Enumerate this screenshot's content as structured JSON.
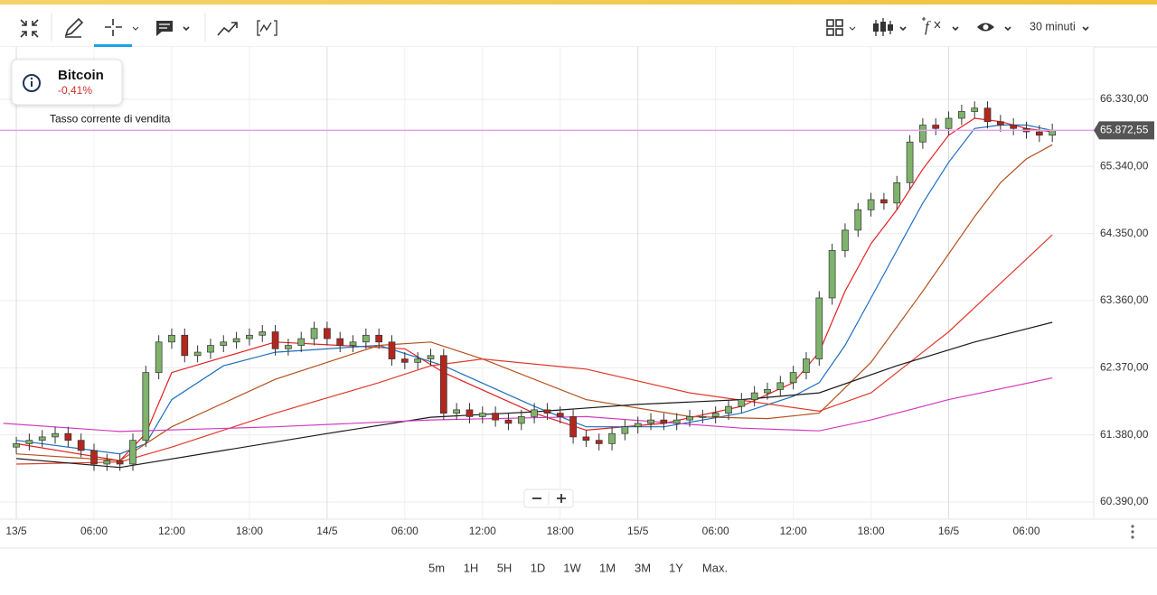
{
  "toolbar": {
    "interval": "30 minuti"
  },
  "instrument": {
    "name": "Bitcoin",
    "change": "-0,41%"
  },
  "ranges": [
    "5m",
    "1H",
    "5H",
    "1D",
    "1W",
    "1M",
    "3M",
    "1Y",
    "Max."
  ],
  "chart_data": {
    "type": "candlestick",
    "x": [
      0,
      1,
      2,
      3,
      4,
      5,
      6,
      7,
      8,
      9,
      10,
      11,
      12,
      13,
      14,
      15,
      16,
      17,
      18,
      19,
      20,
      21,
      22,
      23,
      24,
      25,
      26,
      27,
      28,
      29,
      30,
      31,
      32,
      33,
      34,
      35,
      36,
      37,
      38,
      39,
      40,
      41,
      42,
      43,
      44,
      45,
      46,
      47,
      48,
      49,
      50,
      51,
      52,
      53,
      54,
      55,
      56,
      57,
      58,
      59,
      60,
      61,
      62,
      63,
      64,
      65,
      66,
      67,
      68,
      69,
      70,
      71,
      72,
      73,
      74,
      75,
      76,
      77,
      78,
      79,
      80
    ],
    "open": [
      61200,
      61250,
      61300,
      61350,
      61400,
      61300,
      61150,
      60950,
      61000,
      60950,
      61300,
      62300,
      62750,
      62850,
      62550,
      62600,
      62700,
      62750,
      62800,
      62850,
      62900,
      62650,
      62700,
      62800,
      62950,
      62800,
      62700,
      62750,
      62850,
      62750,
      62500,
      62450,
      62500,
      62550,
      61700,
      61750,
      61650,
      61700,
      61600,
      61550,
      61650,
      61750,
      61700,
      61650,
      61350,
      61300,
      61250,
      61400,
      61500,
      61550,
      61600,
      61550,
      61600,
      61650,
      61650,
      61700,
      61800,
      61900,
      62000,
      62050,
      62150,
      62300,
      62500,
      63400,
      64100,
      64400,
      64700,
      64850,
      64800,
      65100,
      65700,
      65950,
      65900,
      66050,
      66150,
      66200,
      66000,
      65950,
      65900,
      65850,
      65800
    ],
    "high": [
      61350,
      61400,
      61450,
      61500,
      61500,
      61400,
      61250,
      61100,
      61100,
      61400,
      62400,
      62850,
      62950,
      62950,
      62700,
      62800,
      62850,
      62900,
      62950,
      63000,
      63000,
      62800,
      62900,
      63050,
      63050,
      62900,
      62850,
      62950,
      62950,
      62850,
      62600,
      62600,
      62650,
      62650,
      61850,
      61850,
      61800,
      61800,
      61700,
      61750,
      61850,
      61850,
      61800,
      61750,
      61450,
      61400,
      61500,
      61600,
      61650,
      61700,
      61700,
      61700,
      61750,
      61750,
      61800,
      61900,
      62000,
      62100,
      62150,
      62250,
      62400,
      62600,
      63500,
      64200,
      64500,
      64800,
      64950,
      64950,
      65200,
      65800,
      66050,
      66050,
      66150,
      66250,
      66300,
      66300,
      66100,
      66050,
      66000,
      65950,
      65970
    ],
    "low": [
      61100,
      61150,
      61200,
      61250,
      61200,
      61050,
      60850,
      60850,
      60850,
      60850,
      61200,
      62200,
      62650,
      62450,
      62450,
      62500,
      62600,
      62650,
      62700,
      62750,
      62550,
      62550,
      62600,
      62700,
      62700,
      62600,
      62600,
      62650,
      62650,
      62400,
      62350,
      62350,
      62400,
      61600,
      61600,
      61550,
      61550,
      61500,
      61450,
      61450,
      61550,
      61600,
      61550,
      61250,
      61200,
      61150,
      61150,
      61300,
      61400,
      61450,
      61450,
      61450,
      61500,
      61550,
      61550,
      61600,
      61700,
      61800,
      61900,
      61950,
      62050,
      62200,
      62400,
      63300,
      64000,
      64300,
      64600,
      64700,
      64700,
      65000,
      65600,
      65800,
      65800,
      65950,
      66050,
      65900,
      65850,
      65800,
      65750,
      65700,
      65700
    ],
    "close": [
      61250,
      61300,
      61350,
      61400,
      61300,
      61150,
      60950,
      61000,
      60950,
      61300,
      62300,
      62750,
      62850,
      62550,
      62600,
      62700,
      62750,
      62800,
      62850,
      62900,
      62650,
      62700,
      62800,
      62950,
      62800,
      62700,
      62750,
      62850,
      62750,
      62500,
      62450,
      62500,
      62550,
      61700,
      61750,
      61650,
      61700,
      61600,
      61550,
      61650,
      61750,
      61700,
      61650,
      61350,
      61300,
      61250,
      61400,
      61500,
      61550,
      61600,
      61550,
      61600,
      61650,
      61650,
      61700,
      61800,
      61900,
      62000,
      62050,
      62150,
      62300,
      62500,
      63400,
      64100,
      64400,
      64700,
      64850,
      64800,
      65100,
      65700,
      65950,
      65900,
      66050,
      66150,
      66200,
      66000,
      65950,
      65900,
      65850,
      65800,
      65870
    ],
    "up_color": "#7fb36b",
    "down_color": "#b3261e",
    "lines": [
      {
        "color": "#e21f1f",
        "x": [
          0,
          8,
          10,
          12,
          20,
          30,
          33,
          40,
          44,
          50,
          56,
          60,
          62,
          64,
          66,
          68,
          70,
          72,
          74,
          76,
          78,
          80
        ],
        "values": [
          61250,
          61000,
          61400,
          62300,
          62750,
          62650,
          62300,
          61700,
          61450,
          61550,
          61800,
          62150,
          62600,
          63500,
          64200,
          64700,
          65300,
          65800,
          66050,
          66000,
          65900,
          65850
        ]
      },
      {
        "color": "#1e6fbe",
        "x": [
          0,
          8,
          10,
          12,
          16,
          20,
          28,
          33,
          40,
          44,
          50,
          56,
          60,
          62,
          64,
          66,
          68,
          70,
          72,
          74,
          76,
          78,
          80
        ],
        "values": [
          61300,
          61100,
          61250,
          61900,
          62400,
          62600,
          62700,
          62400,
          61800,
          61500,
          61500,
          61700,
          61950,
          62150,
          62700,
          63400,
          64100,
          64800,
          65400,
          65900,
          65950,
          65950,
          65870
        ]
      },
      {
        "color": "#b4521e",
        "x": [
          0,
          8,
          12,
          20,
          28,
          32,
          36,
          44,
          52,
          58,
          62,
          66,
          70,
          74,
          76,
          78,
          80
        ],
        "values": [
          61100,
          61000,
          61500,
          62200,
          62700,
          62750,
          62500,
          61900,
          61650,
          61620,
          61700,
          62450,
          63500,
          64600,
          65100,
          65450,
          65660
        ]
      },
      {
        "color": "#e03a2a",
        "x": [
          0,
          8,
          12,
          20,
          28,
          32,
          36,
          44,
          52,
          62,
          66,
          72,
          80
        ],
        "values": [
          60950,
          60980,
          61200,
          61700,
          62150,
          62400,
          62500,
          62350,
          62000,
          61730,
          62000,
          62900,
          64330
        ]
      },
      {
        "color": "#1a1a1a",
        "x": [
          0,
          8,
          16,
          24,
          32,
          40,
          48,
          56,
          62,
          68,
          74,
          80
        ],
        "values": [
          61030,
          60900,
          61150,
          61400,
          61640,
          61720,
          61830,
          61900,
          62000,
          62400,
          62750,
          63040
        ]
      },
      {
        "color": "#d23bbf",
        "x": [
          -1,
          8,
          20,
          32,
          44,
          56,
          62,
          66,
          72,
          80
        ],
        "values": [
          61550,
          61430,
          61500,
          61600,
          61650,
          61480,
          61440,
          61600,
          61900,
          62220
        ]
      }
    ],
    "price_line": {
      "value": 65872.55,
      "label": "65.872,55",
      "text": "Tasso corrente di vendita",
      "color": "#e3a0e8"
    },
    "xlim": [
      -1.26,
      83.2
    ],
    "ylim": [
      60137,
      67102
    ],
    "xticks": [
      {
        "value": 0,
        "label": "13/5"
      },
      {
        "value": 6,
        "label": "06:00"
      },
      {
        "value": 12,
        "label": "12:00"
      },
      {
        "value": 18,
        "label": "18:00"
      },
      {
        "value": 24,
        "label": "14/5"
      },
      {
        "value": 30,
        "label": "06:00"
      },
      {
        "value": 36,
        "label": "12:00"
      },
      {
        "value": 42,
        "label": "18:00"
      },
      {
        "value": 48,
        "label": "15/5"
      },
      {
        "value": 54,
        "label": "06:00"
      },
      {
        "value": 60,
        "label": "12:00"
      },
      {
        "value": 66,
        "label": "18:00"
      },
      {
        "value": 72,
        "label": "16/5"
      },
      {
        "value": 78,
        "label": "06:00"
      }
    ],
    "yticks": [
      {
        "value": 60390,
        "label": "60.390,00"
      },
      {
        "value": 61380,
        "label": "61.380,00"
      },
      {
        "value": 62370,
        "label": "62.370,00"
      },
      {
        "value": 63360,
        "label": "63.360,00"
      },
      {
        "value": 64350,
        "label": "64.350,00"
      },
      {
        "value": 65340,
        "label": "65.340,00"
      },
      {
        "value": 66330,
        "label": "66.330,00"
      }
    ],
    "grid": true
  }
}
